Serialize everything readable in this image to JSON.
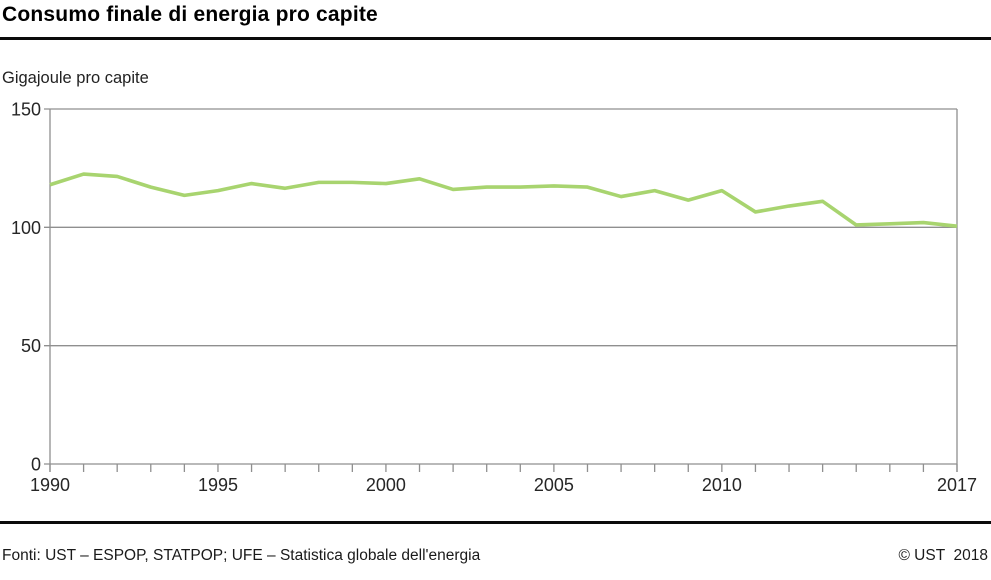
{
  "header": {
    "title": "Consumo finale di energia pro capite",
    "unit_label": "Gigajoule pro capite"
  },
  "footer": {
    "sources": "Fonti: UST – ESPOP, STATPOP; UFE – Statistica globale dell'energia",
    "copyright": "© UST  2018"
  },
  "colors": {
    "line": "#a8d46f",
    "grid": "#8f8f8f",
    "axis_text": "#262626",
    "rule": "#0a0a0a"
  },
  "chart_data": {
    "type": "line",
    "title": "Consumo finale di energia pro capite",
    "ylabel": "Gigajoule pro capite",
    "x": [
      1990,
      1991,
      1992,
      1993,
      1994,
      1995,
      1996,
      1997,
      1998,
      1999,
      2000,
      2001,
      2002,
      2003,
      2004,
      2005,
      2006,
      2007,
      2008,
      2009,
      2010,
      2011,
      2012,
      2013,
      2014,
      2015,
      2016,
      2017
    ],
    "series": [
      {
        "name": "Consumo finale di energia pro capite",
        "color": "#a8d46f",
        "values": [
          118,
          122.5,
          121.5,
          117,
          113.5,
          115.5,
          118.5,
          116.5,
          119,
          119,
          118.5,
          120.5,
          116,
          117,
          117,
          117.5,
          117,
          113,
          115.5,
          111.5,
          115.5,
          106.5,
          109,
          111,
          101,
          101.5,
          102,
          100.5
        ]
      }
    ],
    "ylim": [
      0,
      150
    ],
    "yticks": [
      0,
      50,
      100,
      150
    ],
    "xticks_labeled": [
      1990,
      1995,
      2000,
      2005,
      2010,
      2017
    ],
    "grid": "horizontal",
    "legend": "none"
  }
}
